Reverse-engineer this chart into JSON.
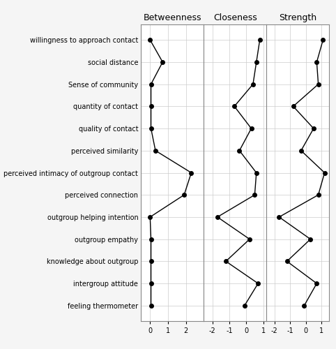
{
  "labels": [
    "willingness to approach contact",
    "social distance",
    "Sense of community",
    "quantity of contact",
    "quality of contact",
    "perceived similarity",
    "perceived intimacy of outgroup contact",
    "perceived connection",
    "outgroup helping intention",
    "outgroup empathy",
    "knowledge about outgroup",
    "intergroup attitude",
    "feeling thermometer"
  ],
  "betweenness": [
    0.0,
    0.7,
    0.05,
    0.05,
    0.05,
    0.3,
    2.3,
    1.9,
    0.0,
    0.05,
    0.05,
    0.05,
    0.05
  ],
  "closeness": [
    0.8,
    0.6,
    0.4,
    -0.7,
    0.3,
    -0.4,
    0.6,
    0.5,
    -1.7,
    0.2,
    -1.2,
    0.7,
    -0.1
  ],
  "strength": [
    1.1,
    0.7,
    0.8,
    -0.8,
    0.5,
    -0.3,
    1.2,
    0.8,
    -1.7,
    0.3,
    -1.2,
    0.7,
    -0.1
  ],
  "panel_titles": [
    "Betweenness",
    "Closeness",
    "Strength"
  ],
  "betweenness_xlim": [
    -0.5,
    3.0
  ],
  "betweenness_xticks": [
    0,
    1,
    2
  ],
  "closeness_xlim": [
    -2.5,
    1.2
  ],
  "closeness_xticks": [
    -2,
    -1,
    0,
    1
  ],
  "strength_xlim": [
    -2.5,
    1.5
  ],
  "strength_xticks": [
    -2,
    -1,
    0,
    1
  ],
  "line_color": "#000000",
  "marker": "o",
  "marker_size": 4,
  "bg_color": "#f5f5f5",
  "panel_bg": "#ffffff",
  "grid_color": "#cccccc",
  "label_fontsize": 7,
  "title_fontsize": 9
}
